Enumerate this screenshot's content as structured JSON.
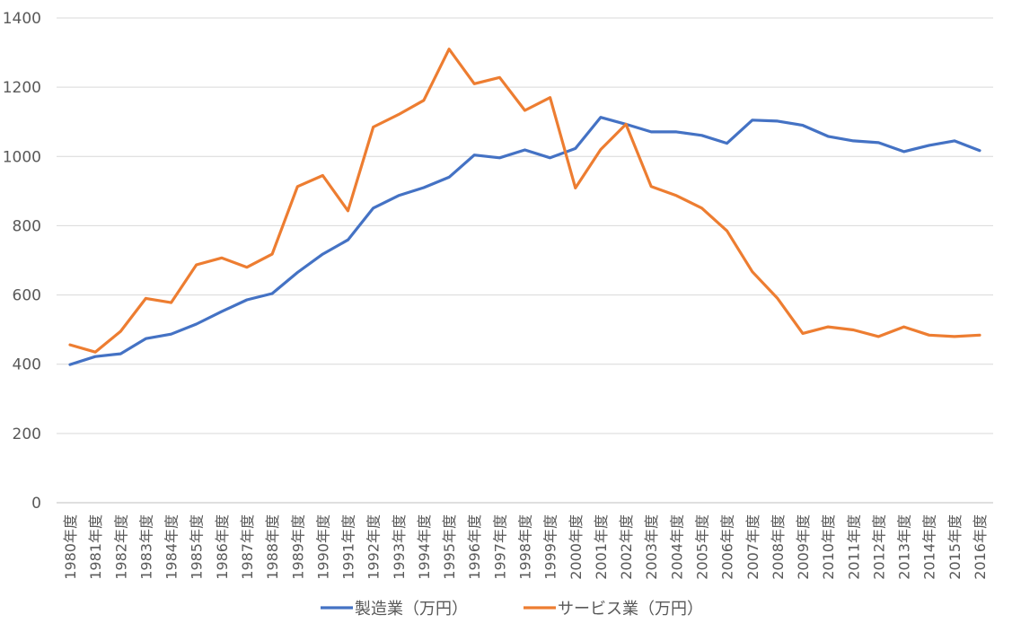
{
  "chart_data": {
    "type": "line",
    "categories": [
      "1980年度",
      "1981年度",
      "1982年度",
      "1983年度",
      "1984年度",
      "1985年度",
      "1986年度",
      "1987年度",
      "1988年度",
      "1989年度",
      "1990年度",
      "1991年度",
      "1992年度",
      "1993年度",
      "1994年度",
      "1995年度",
      "1996年度",
      "1997年度",
      "1998年度",
      "1999年度",
      "2000年度",
      "2001年度",
      "2002年度",
      "2003年度",
      "2004年度",
      "2005年度",
      "2006年度",
      "2007年度",
      "2008年度",
      "2009年度",
      "2010年度",
      "2011年度",
      "2012年度",
      "2013年度",
      "2014年度",
      "2015年度",
      "2016年度"
    ],
    "series": [
      {
        "name": "製造業（万円）",
        "color": "#4472C4",
        "values": [
          399,
          422,
          430,
          474,
          487,
          516,
          552,
          586,
          604,
          665,
          718,
          759,
          851,
          887,
          910,
          940,
          1004,
          996,
          1019,
          996,
          1023,
          1113,
          1093,
          1071,
          1071,
          1061,
          1038,
          1105,
          1102,
          1090,
          1058,
          1045,
          1040,
          1014,
          1032,
          1045,
          1017
        ]
      },
      {
        "name": "サービス業（万円）",
        "color": "#ED7D31",
        "values": [
          456,
          435,
          495,
          590,
          578,
          687,
          707,
          680,
          718,
          913,
          945,
          843,
          1085,
          1121,
          1162,
          1310,
          1210,
          1228,
          1133,
          1170,
          909,
          1020,
          1093,
          913,
          887,
          851,
          785,
          667,
          590,
          489,
          508,
          499,
          480,
          508,
          484,
          480,
          484
        ]
      }
    ],
    "ylim": [
      0,
      1400
    ],
    "yticks": [
      "0",
      "200",
      "400",
      "600",
      "800",
      "1000",
      "1200",
      "1400"
    ],
    "grid": true,
    "legend_position": "bottom"
  }
}
